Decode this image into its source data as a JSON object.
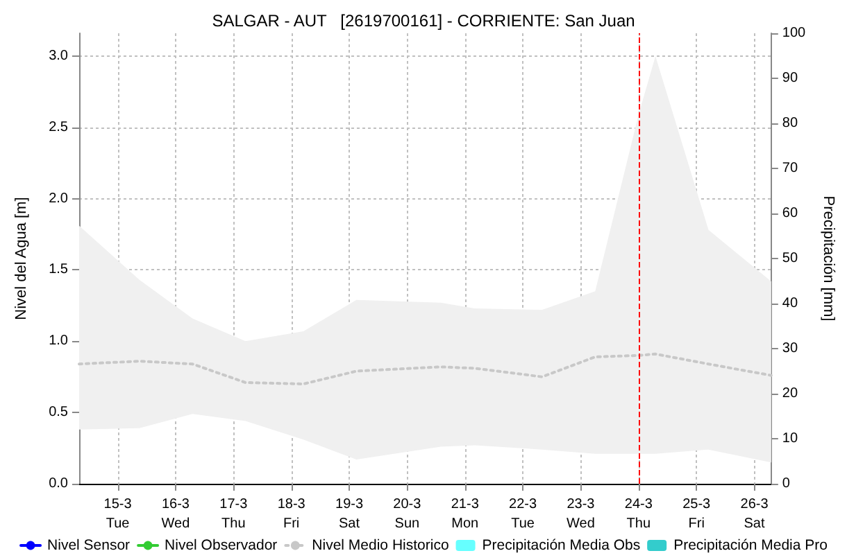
{
  "chart_data": {
    "type": "line",
    "title": "SALGAR - AUT   [2619700161] - CORRIENTE: San Juan",
    "ylabel": "Nivel del Agua [m]",
    "y2label": "Precipitación [mm]",
    "x": [
      "--03-14T08:00",
      "--03-15T09:00",
      "--03-16T07:00",
      "--03-17T05:00",
      "--03-18T05:00",
      "--03-19T03:00",
      "--03-20T14:00",
      "--03-21T04:00",
      "--03-22T08:00",
      "--03-23T06:00",
      "--03-24T00:00",
      "--03-24T07:00",
      "--03-25T05:00",
      "--03-26T07:00"
    ],
    "series": [
      {
        "name": "Nivel Sensor",
        "color": "#0000ff",
        "line_style": "solid",
        "marker": "none",
        "values": [
          null,
          null,
          null,
          null,
          null,
          null,
          null,
          null,
          null,
          null,
          null,
          null,
          null,
          null
        ]
      },
      {
        "name": "Nivel Observador",
        "color": "#33cc33",
        "line_style": "solid",
        "marker": "circle",
        "values": [
          null,
          null,
          null,
          null,
          null,
          null,
          null,
          null,
          null,
          null,
          null,
          null,
          null,
          null
        ]
      },
      {
        "name": "Nivel Medio Historico",
        "color": "#c8c8c8",
        "line_style": "dotted",
        "marker": "none",
        "values": [
          0.84,
          0.86,
          0.84,
          0.71,
          0.7,
          0.79,
          0.82,
          0.81,
          0.75,
          0.89,
          0.9,
          0.91,
          0.84,
          0.76
        ],
        "lower": [
          0.38,
          0.39,
          0.49,
          0.44,
          0.31,
          0.17,
          0.26,
          0.27,
          0.24,
          0.21,
          0.21,
          0.21,
          0.24,
          0.15
        ],
        "upper": [
          1.81,
          1.43,
          1.16,
          1.0,
          1.07,
          1.29,
          1.27,
          1.23,
          1.22,
          1.35,
          2.59,
          3.0,
          1.78,
          1.42
        ]
      },
      {
        "name": "Precipitación Media Obs",
        "type": "bar",
        "color": "#66ffff",
        "values": [
          null,
          null,
          null,
          null,
          null,
          null,
          null,
          null,
          null,
          null,
          null,
          null,
          null,
          null
        ]
      },
      {
        "name": "Precipitación Media Pro",
        "type": "bar",
        "color": "#33cccc",
        "values": [
          null,
          null,
          null,
          null,
          null,
          null,
          null,
          null,
          null,
          null,
          null,
          null,
          null,
          null
        ]
      }
    ],
    "xlim": [
      "--03-14T08:00",
      "--03-26T07:00"
    ],
    "xticks": [
      {
        "value": "--03-15",
        "label": "15-3\nTue"
      },
      {
        "value": "--03-16",
        "label": "16-3\nWed"
      },
      {
        "value": "--03-17",
        "label": "17-3\nThu"
      },
      {
        "value": "--03-18",
        "label": "18-3\nFri"
      },
      {
        "value": "--03-19",
        "label": "19-3\nSat"
      },
      {
        "value": "--03-20",
        "label": "20-3\nSun"
      },
      {
        "value": "--03-21",
        "label": "21-3\nMon"
      },
      {
        "value": "--03-22",
        "label": "22-3\nTue"
      },
      {
        "value": "--03-23",
        "label": "23-3\nWed"
      },
      {
        "value": "--03-24",
        "label": "24-3\nThu"
      },
      {
        "value": "--03-25",
        "label": "25-3\nFri"
      },
      {
        "value": "--03-26",
        "label": "26-3\nSat"
      }
    ],
    "ylim": [
      0,
      3.16
    ],
    "yticks": [
      {
        "value": 0,
        "label": "0.0"
      },
      {
        "value": 0.5,
        "label": "0.5"
      },
      {
        "value": 1,
        "label": "1.0"
      },
      {
        "value": 1.5,
        "label": "1.5"
      },
      {
        "value": 2,
        "label": "2.0"
      },
      {
        "value": 2.5,
        "label": "2.5"
      },
      {
        "value": 3,
        "label": "3.0"
      }
    ],
    "y2lim": [
      0,
      100
    ],
    "y2ticks": [
      0,
      10,
      20,
      30,
      40,
      50,
      60,
      70,
      80,
      90,
      100
    ],
    "ref_lines": [
      {
        "axis": "x",
        "value": "--03-24",
        "color": "#ff0000",
        "line_style": "dashed"
      }
    ],
    "grid": true,
    "legend": "bottom"
  }
}
